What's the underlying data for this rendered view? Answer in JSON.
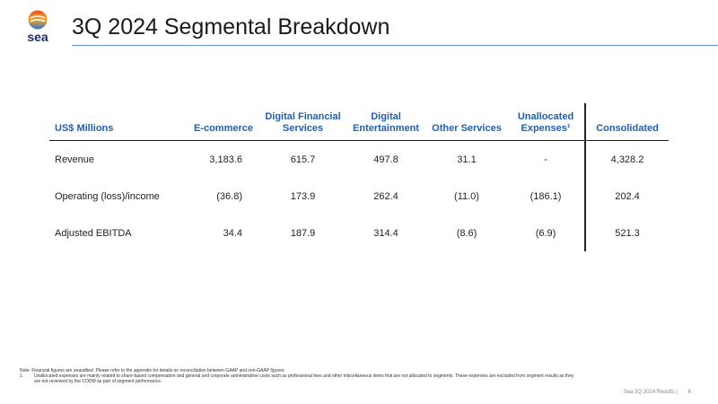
{
  "header": {
    "logo": "sea",
    "title": "3Q 2024 Segmental Breakdown"
  },
  "table": {
    "columns": [
      "US$ Millions",
      "E-commerce",
      "Digital Financial Services",
      "Digital Entertainment",
      "Other Services",
      "Unallocated Expenses¹",
      "Consolidated"
    ],
    "rows": [
      [
        "Revenue",
        "3,183.6",
        "615.7",
        "497.8",
        "31.1",
        "-",
        "4,328.2"
      ],
      [
        "Operating (loss)/income",
        "(36.8)",
        "173.9",
        "262.4",
        "(11.0)",
        "(186.1)",
        "202.4"
      ],
      [
        "Adjusted EBITDA",
        "34.4",
        "187.9",
        "314.4",
        "(8.6)",
        "(6.9)",
        "521.3"
      ]
    ]
  },
  "notes": {
    "note": "Note: Financial figures are unaudited. Please refer to the appendix for details on reconciliation between GAAP and non-GAAP figures.",
    "footnote_marker": "1.",
    "footnote": "Unallocated expenses are mainly related to share-based compensation and general and corporate administrative costs such as professional fees and other miscellaneous items that are not allocated to segments. These expenses are excluded from segment results as they are not reviewed by the CODM as part of segment performance."
  },
  "footer": {
    "text": "Sea 3Q 2024 Results |",
    "page": "6"
  }
}
